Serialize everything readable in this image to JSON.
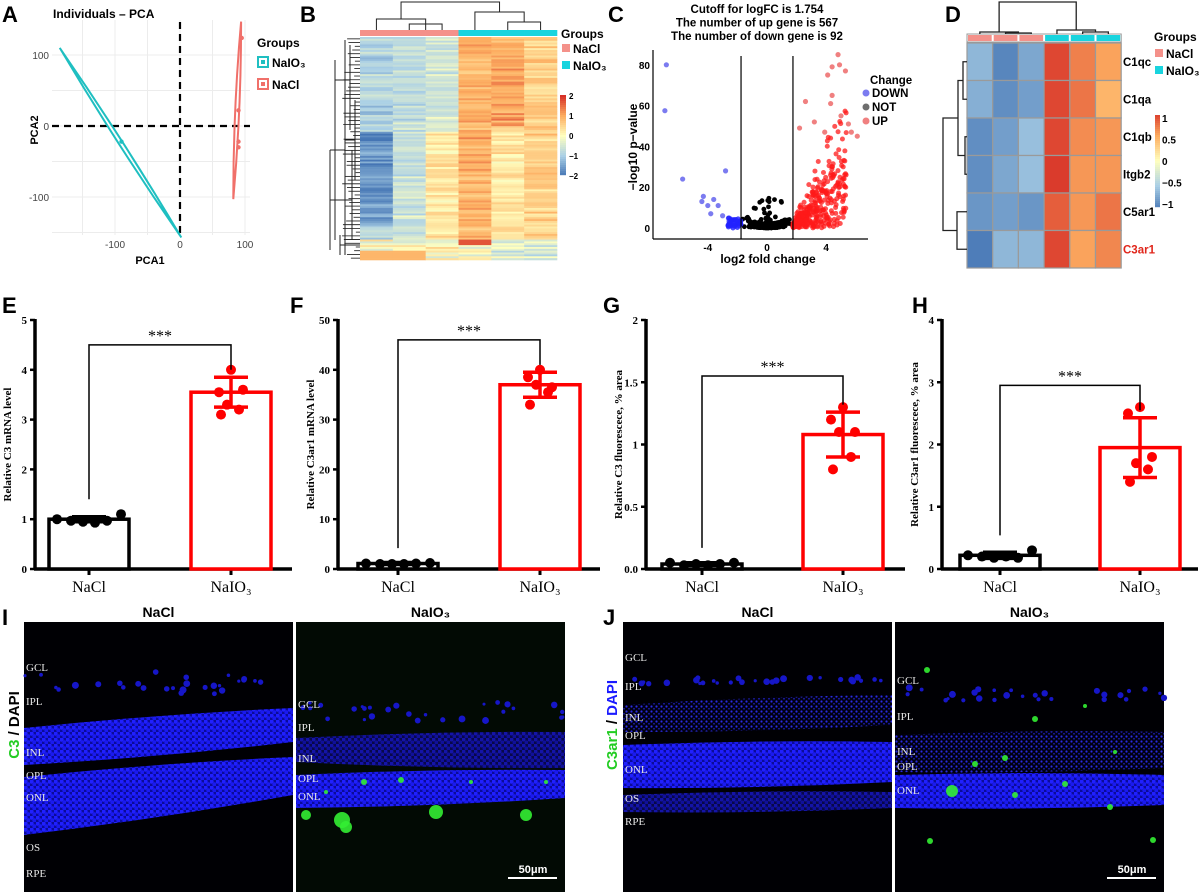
{
  "panel_letters": [
    "A",
    "B",
    "C",
    "D",
    "E",
    "F",
    "G",
    "H",
    "I",
    "J"
  ],
  "chart_data": [
    {
      "panel": "A",
      "type": "scatter",
      "title": "Individuals – PCA",
      "xlabel": "PCA1",
      "ylabel": "PCA2",
      "xlim": [
        -197,
        108
      ],
      "ylim": [
        -153,
        149
      ],
      "xticks": [
        {
          "value": -100,
          "label": "-100"
        },
        {
          "value": 0,
          "label": "0"
        },
        {
          "value": 100,
          "label": "100"
        }
      ],
      "yticks": [
        {
          "value": 100,
          "label": "100"
        },
        {
          "value": 0,
          "label": "0"
        },
        {
          "value": -100,
          "label": "-100"
        }
      ],
      "grid": true,
      "reference_lines": {
        "x": 0,
        "y": 0,
        "style": "dashed"
      },
      "legend": {
        "title": "Groups",
        "placement": "right",
        "items": [
          {
            "label": "NaIO₃",
            "color": "#1fbfc1"
          },
          {
            "label": "NaCl",
            "color": "#f0706a"
          }
        ]
      },
      "series": [
        {
          "name": "NaIO₃",
          "color": "#1fbfc1",
          "ellipse_axis": [
            [
              -185,
              110
            ],
            [
              2,
              -157
            ]
          ],
          "points": [
            [
              -90,
              -22
            ]
          ]
        },
        {
          "name": "NaCl",
          "color": "#f0706a",
          "ellipse_axis": [
            [
              94,
              147
            ],
            [
              82,
              -103
            ]
          ],
          "points": [
            [
              95,
              124
            ],
            [
              90,
              22
            ],
            [
              90,
              -22
            ],
            [
              90,
              -30
            ]
          ]
        }
      ]
    },
    {
      "panel": "B",
      "type": "heatmap",
      "column_groups": [
        "NaCl",
        "NaCl",
        "NaCl",
        "NaIO₃",
        "NaIO₃",
        "NaIO₃"
      ],
      "legend": {
        "title": "Groups",
        "placement": "right",
        "items": [
          {
            "label": "NaCl",
            "color": "#f4918a"
          },
          {
            "label": "NaIO₃",
            "color": "#18d4de"
          }
        ]
      },
      "colorbar": {
        "range": [
          -2,
          2
        ],
        "ticks": [
          "2",
          "1",
          "0",
          "−1",
          "−2"
        ],
        "colors": [
          "#4575b4",
          "#abd0e6",
          "#ffffbf",
          "#fdae61",
          "#d73027"
        ]
      },
      "row_dendrogram": true,
      "column_dendrogram": true
    },
    {
      "panel": "C",
      "type": "scatter",
      "title_lines": [
        "Cutoff for logFC is 1.754",
        "The number of up gene is 567",
        "The number of down gene is 92"
      ],
      "xlabel": "log2 fold change",
      "ylabel": "−log10 p−value",
      "xlim": [
        -7.7,
        6.8
      ],
      "ylim": [
        -5.4,
        87
      ],
      "xticks": [
        {
          "value": -4,
          "label": "-4"
        },
        {
          "value": 0,
          "label": "0"
        },
        {
          "value": 4,
          "label": "4"
        }
      ],
      "yticks": [
        {
          "value": 0,
          "label": "0"
        },
        {
          "value": 20,
          "label": "20"
        },
        {
          "value": 40,
          "label": "40"
        },
        {
          "value": 60,
          "label": "60"
        },
        {
          "value": 80,
          "label": "80"
        }
      ],
      "cutoff": 1.754,
      "up_count": 567,
      "down_count": 92,
      "legend": {
        "title": "Change",
        "placement": "right",
        "items": [
          {
            "label": "DOWN",
            "color": "#7b7bf0"
          },
          {
            "label": "NOT",
            "color": "#6e6e6e"
          },
          {
            "label": "UP",
            "color": "#f08080"
          }
        ]
      },
      "highlighted_points": {
        "DOWN": [
          [
            -6.8,
            80
          ],
          [
            -6.9,
            57.5
          ],
          [
            -5.7,
            24
          ],
          [
            -4.3,
            15.5
          ],
          [
            -4.4,
            13
          ],
          [
            -4.0,
            11
          ],
          [
            -3.6,
            14
          ],
          [
            -2.8,
            28
          ],
          [
            -3.8,
            7
          ],
          [
            -3.3,
            11
          ],
          [
            -3.0,
            6
          ]
        ],
        "UP": [
          [
            4.8,
            85
          ],
          [
            4.9,
            80
          ],
          [
            5.3,
            77
          ],
          [
            4.4,
            79
          ],
          [
            4.1,
            75
          ],
          [
            4.4,
            65
          ],
          [
            4.3,
            61
          ],
          [
            2.6,
            62
          ],
          [
            3.2,
            52
          ],
          [
            5.0,
            55
          ],
          [
            5.5,
            51
          ],
          [
            6.1,
            45
          ],
          [
            5.7,
            47
          ],
          [
            3.9,
            47
          ],
          [
            2.2,
            49
          ]
        ]
      }
    },
    {
      "panel": "D",
      "type": "heatmap",
      "column_groups": [
        "NaCl",
        "NaCl",
        "NaCl",
        "NaIO₃",
        "NaIO₃",
        "NaIO₃"
      ],
      "rows": [
        {
          "gene": "C1qc",
          "values": [
            -0.7,
            -1.0,
            -0.8,
            1.0,
            0.75,
            0.6
          ],
          "highlight": false
        },
        {
          "gene": "C1qa",
          "values": [
            -0.75,
            -0.95,
            -0.85,
            1.0,
            0.8,
            0.5
          ],
          "highlight": false
        },
        {
          "gene": "C1qb",
          "values": [
            -0.95,
            -0.85,
            -0.65,
            1.0,
            0.7,
            0.65
          ],
          "highlight": false
        },
        {
          "gene": "Itgb2",
          "values": [
            -0.95,
            -0.8,
            -0.65,
            1.05,
            0.65,
            0.65
          ],
          "highlight": false
        },
        {
          "gene": "C5ar1",
          "values": [
            -0.9,
            -0.85,
            -0.9,
            0.9,
            0.65,
            0.8
          ],
          "highlight": false
        },
        {
          "gene": "C3ar1",
          "values": [
            -1.05,
            -0.7,
            -0.7,
            1.0,
            0.6,
            0.72
          ],
          "highlight": true
        }
      ],
      "highlight_color": "#e0261b",
      "legend": {
        "title": "Groups",
        "placement": "right",
        "items": [
          {
            "label": "NaCl",
            "color": "#f4918a"
          },
          {
            "label": "NaIO₃",
            "color": "#18d4de"
          }
        ]
      },
      "colorbar": {
        "range": [
          -1,
          1
        ],
        "ticks": [
          "1",
          "0.5",
          "0",
          "−0.5",
          "−1"
        ],
        "colors": [
          "#4575b4",
          "#abd0e6",
          "#ffffbf",
          "#fdae61",
          "#d73027"
        ]
      }
    },
    {
      "panel": "E",
      "type": "bar",
      "ylabel": "Relative C3 mRNA level",
      "ylim": [
        0,
        5
      ],
      "yticks": [
        {
          "value": 0,
          "label": "0"
        },
        {
          "value": 1,
          "label": "1"
        },
        {
          "value": 2,
          "label": "2"
        },
        {
          "value": 3,
          "label": "3"
        },
        {
          "value": 4,
          "label": "4"
        },
        {
          "value": 5,
          "label": "5"
        }
      ],
      "categories": [
        "NaCl",
        "NaIO₃"
      ],
      "colors": [
        "#000000",
        "#ff0000"
      ],
      "means": [
        1.0,
        3.55
      ],
      "sd": [
        0.05,
        0.3
      ],
      "points": [
        [
          1.0,
          0.97,
          0.95,
          0.93,
          0.97,
          1.1
        ],
        [
          4.0,
          3.55,
          3.6,
          3.3,
          3.2,
          3.1
        ]
      ],
      "significance": {
        "label": "***",
        "level": 4.5
      }
    },
    {
      "panel": "F",
      "type": "bar",
      "ylabel": "Relative C3ar1 mRNA level",
      "ylim": [
        0,
        50
      ],
      "yticks": [
        {
          "value": 0,
          "label": "0"
        },
        {
          "value": 10,
          "label": "10"
        },
        {
          "value": 20,
          "label": "20"
        },
        {
          "value": 30,
          "label": "30"
        },
        {
          "value": 40,
          "label": "40"
        },
        {
          "value": 50,
          "label": "50"
        }
      ],
      "categories": [
        "NaCl",
        "NaIO₃"
      ],
      "colors": [
        "#000000",
        "#ff0000"
      ],
      "means": [
        1.1,
        37
      ],
      "sd": [
        0.2,
        2.5
      ],
      "points": [
        [
          1.1,
          1.0,
          1.0,
          1.0,
          1.1,
          1.2
        ],
        [
          40,
          38.5,
          36.5,
          37,
          35.5,
          33
        ]
      ],
      "significance": {
        "label": "***",
        "level": 46
      }
    },
    {
      "panel": "G",
      "type": "bar",
      "ylabel": "Relative C3 fluorescece, % area",
      "ylim": [
        0,
        2
      ],
      "yticks": [
        {
          "value": 0,
          "label": "0.0"
        },
        {
          "value": 0.5,
          "label": "0.5"
        },
        {
          "value": 1,
          "label": "1"
        },
        {
          "value": 1.5,
          "label": "1.5"
        },
        {
          "value": 2,
          "label": "2"
        }
      ],
      "categories": [
        "NaCl",
        "NaIO₃"
      ],
      "colors": [
        "#000000",
        "#ff0000"
      ],
      "means": [
        0.04,
        1.08
      ],
      "sd": [
        0.01,
        0.18
      ],
      "points": [
        [
          0.05,
          0.03,
          0.04,
          0.03,
          0.04,
          0.05
        ],
        [
          1.3,
          1.2,
          1.1,
          1.1,
          0.9,
          0.8
        ]
      ],
      "significance": {
        "label": "***",
        "level": 1.55
      }
    },
    {
      "panel": "H",
      "type": "bar",
      "ylabel": "Relative C3ar1 fluorescece, % area",
      "ylim": [
        0,
        4
      ],
      "yticks": [
        {
          "value": 0,
          "label": "0"
        },
        {
          "value": 1,
          "label": "1"
        },
        {
          "value": 2,
          "label": "2"
        },
        {
          "value": 3,
          "label": "3"
        },
        {
          "value": 4,
          "label": "4"
        }
      ],
      "categories": [
        "NaCl",
        "NaIO₃"
      ],
      "colors": [
        "#000000",
        "#ff0000"
      ],
      "means": [
        0.22,
        1.95
      ],
      "sd": [
        0.05,
        0.48
      ],
      "points": [
        [
          0.22,
          0.2,
          0.18,
          0.2,
          0.18,
          0.3
        ],
        [
          2.6,
          2.5,
          1.8,
          1.7,
          1.6,
          1.4
        ]
      ],
      "significance": {
        "label": "***",
        "level": 2.95
      }
    }
  ],
  "micrographs": [
    {
      "panel": "I",
      "stain_label": [
        {
          "text": "C3",
          "color": "#22cc22"
        },
        {
          "text": " / DAPI",
          "color": "#000000"
        }
      ],
      "columns": [
        {
          "title": "NaCl",
          "layers": [
            "GCL",
            "IPL",
            "INL",
            "OPL",
            "ONL",
            "OS",
            "RPE"
          ]
        },
        {
          "title": "NaIO₃",
          "layers": [
            "GCL",
            "IPL",
            "INL",
            "OPL",
            "ONL"
          ]
        }
      ],
      "scale_bar": "50μm"
    },
    {
      "panel": "J",
      "stain_label": [
        {
          "text": "C3ar1",
          "color": "#22cc22"
        },
        {
          "text": " / ",
          "color": "#000000"
        },
        {
          "text": "DAPI",
          "color": "#1a1aff"
        }
      ],
      "columns": [
        {
          "title": "NaCl",
          "layers": [
            "GCL",
            "IPL",
            "INL",
            "OPL",
            "ONL",
            "OS",
            "RPE"
          ]
        },
        {
          "title": "NaIO₃",
          "layers": [
            "GCL",
            "IPL",
            "INL",
            "OPL",
            "ONL"
          ]
        }
      ],
      "scale_bar": "50μm"
    }
  ]
}
